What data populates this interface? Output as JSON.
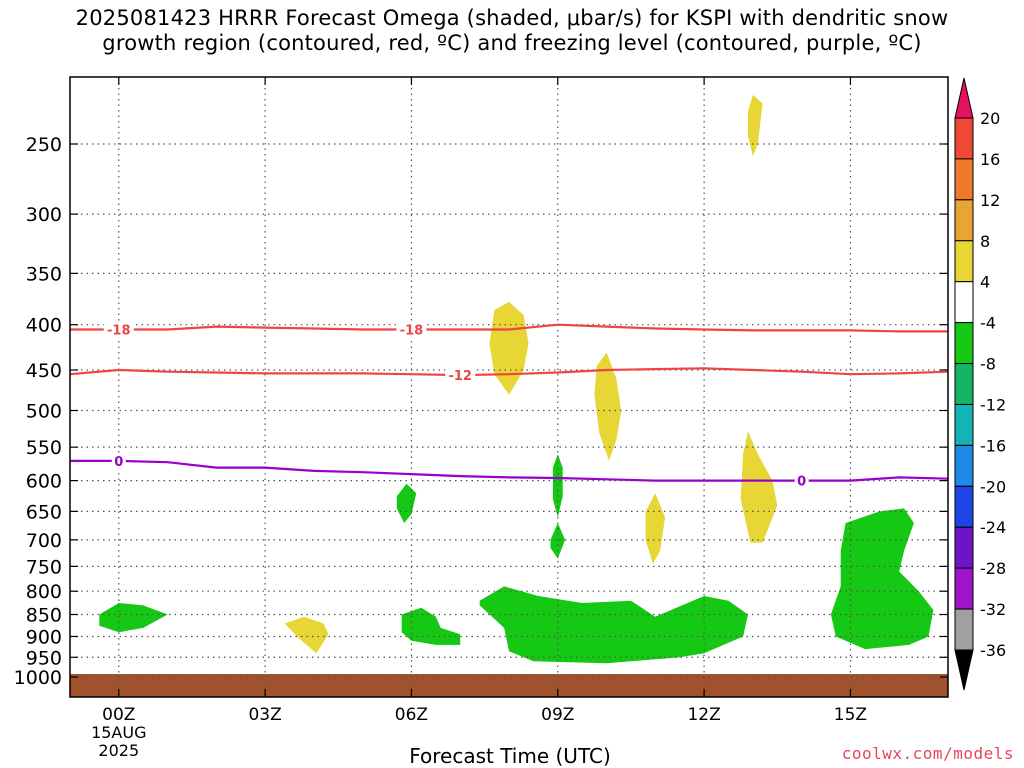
{
  "chart_data": {
    "type": "heatmap",
    "title": [
      "2025081423 HRRR Forecast Omega (shaded, μbar/s) for KSPI with dendritic snow",
      "growth region (contoured, red, ºC) and freezing level (contoured, purple, ºC)"
    ],
    "xlabel": "Forecast Time (UTC)",
    "ylabel": "",
    "x_range_hours": [
      -1,
      17
    ],
    "y_range_mb": [
      1025,
      200
    ],
    "y_ticks": [
      250,
      300,
      350,
      400,
      450,
      500,
      550,
      600,
      650,
      700,
      750,
      800,
      850,
      900,
      950,
      1000
    ],
    "x_ticks": [
      {
        "hour": 0,
        "label": "00Z",
        "sub": [
          "15AUG",
          "2025"
        ]
      },
      {
        "hour": 3,
        "label": "03Z"
      },
      {
        "hour": 6,
        "label": "06Z"
      },
      {
        "hour": 9,
        "label": "09Z"
      },
      {
        "hour": 12,
        "label": "12Z"
      },
      {
        "hour": 15,
        "label": "15Z"
      }
    ],
    "grid": true,
    "colorbar": {
      "labels": [
        "20",
        "16",
        "12",
        "8",
        "4",
        "-4",
        "-8",
        "-12",
        "-16",
        "-20",
        "-24",
        "-28",
        "-32",
        "-36"
      ],
      "colors": [
        "#e8115f",
        "#ef4937",
        "#f07a2c",
        "#e8a534",
        "#e8d634",
        "#ffffff",
        "#14c814",
        "#14b464",
        "#14b4b4",
        "#1e8ce6",
        "#1e46e6",
        "#6e14c8",
        "#a014c8",
        "#a0a0a0",
        "#000000"
      ]
    },
    "contours": [
      {
        "value": "-18",
        "color": "#ef4444",
        "points": [
          [
            -1,
            405
          ],
          [
            0,
            405
          ],
          [
            1,
            405
          ],
          [
            2,
            402
          ],
          [
            3,
            403
          ],
          [
            4,
            404
          ],
          [
            5,
            405
          ],
          [
            6,
            405
          ],
          [
            7,
            405
          ],
          [
            8,
            405
          ],
          [
            9,
            400
          ],
          [
            10,
            402
          ],
          [
            11,
            404
          ],
          [
            12,
            405
          ],
          [
            13,
            406
          ],
          [
            14,
            406
          ],
          [
            15,
            406
          ],
          [
            16,
            407
          ],
          [
            17,
            407
          ]
        ],
        "label_hours": [
          0,
          6
        ]
      },
      {
        "value": "-12",
        "color": "#ef4444",
        "points": [
          [
            -1,
            455
          ],
          [
            0,
            450
          ],
          [
            1,
            452
          ],
          [
            2,
            453
          ],
          [
            3,
            454
          ],
          [
            4,
            454
          ],
          [
            5,
            454
          ],
          [
            6,
            455
          ],
          [
            7,
            456
          ],
          [
            8,
            455
          ],
          [
            9,
            453
          ],
          [
            10,
            450
          ],
          [
            11,
            449
          ],
          [
            12,
            448
          ],
          [
            13,
            450
          ],
          [
            14,
            452
          ],
          [
            15,
            455
          ],
          [
            16,
            454
          ],
          [
            17,
            452
          ]
        ],
        "label_hours": [
          7
        ]
      },
      {
        "value": "0",
        "color": "#9900cc",
        "points": [
          [
            -1,
            570
          ],
          [
            0,
            570
          ],
          [
            1,
            572
          ],
          [
            2,
            580
          ],
          [
            3,
            580
          ],
          [
            4,
            585
          ],
          [
            5,
            587
          ],
          [
            6,
            590
          ],
          [
            7,
            593
          ],
          [
            8,
            595
          ],
          [
            9,
            596
          ],
          [
            10,
            598
          ],
          [
            11,
            600
          ],
          [
            12,
            600
          ],
          [
            13,
            600
          ],
          [
            14,
            600
          ],
          [
            15,
            600
          ],
          [
            16,
            595
          ],
          [
            17,
            597
          ]
        ],
        "label_hours": [
          0,
          14
        ]
      }
    ],
    "omega_regions": [
      {
        "level": "4",
        "color": "#e8d634",
        "points": [
          [
            12.9,
            230
          ],
          [
            13.0,
            220
          ],
          [
            13.2,
            225
          ],
          [
            13.1,
            250
          ],
          [
            13.0,
            258
          ],
          [
            12.9,
            245
          ]
        ]
      },
      {
        "level": "4",
        "color": "#e8d634",
        "points": [
          [
            7.7,
            385
          ],
          [
            8.0,
            377
          ],
          [
            8.3,
            390
          ],
          [
            8.4,
            420
          ],
          [
            8.3,
            450
          ],
          [
            8.0,
            480
          ],
          [
            7.7,
            455
          ],
          [
            7.6,
            420
          ]
        ]
      },
      {
        "level": "4",
        "color": "#e8d634",
        "points": [
          [
            9.8,
            445
          ],
          [
            10.0,
            430
          ],
          [
            10.2,
            460
          ],
          [
            10.3,
            500
          ],
          [
            10.2,
            540
          ],
          [
            10.05,
            570
          ],
          [
            9.85,
            530
          ],
          [
            9.75,
            480
          ]
        ]
      },
      {
        "level": "4",
        "color": "#e8d634",
        "points": [
          [
            12.8,
            560
          ],
          [
            12.9,
            528
          ],
          [
            13.1,
            560
          ],
          [
            13.4,
            600
          ],
          [
            13.5,
            640
          ],
          [
            13.2,
            705
          ],
          [
            12.95,
            705
          ],
          [
            12.75,
            630
          ]
        ]
      },
      {
        "level": "4",
        "color": "#e8d634",
        "points": [
          [
            10.8,
            650
          ],
          [
            11.0,
            620
          ],
          [
            11.2,
            660
          ],
          [
            11.1,
            720
          ],
          [
            10.95,
            745
          ],
          [
            10.8,
            700
          ]
        ]
      },
      {
        "level": "4",
        "color": "#e8d634",
        "points": [
          [
            3.4,
            870
          ],
          [
            3.8,
            855
          ],
          [
            4.2,
            870
          ],
          [
            4.3,
            895
          ],
          [
            4.05,
            940
          ],
          [
            3.7,
            905
          ]
        ]
      },
      {
        "level": "-4",
        "color": "#14c814",
        "points": [
          [
            -0.4,
            850
          ],
          [
            0,
            825
          ],
          [
            0.5,
            830
          ],
          [
            1.0,
            850
          ],
          [
            0.5,
            880
          ],
          [
            0,
            890
          ],
          [
            -0.4,
            875
          ]
        ]
      },
      {
        "level": "-4",
        "color": "#14c814",
        "points": [
          [
            5.7,
            625
          ],
          [
            5.9,
            605
          ],
          [
            6.1,
            620
          ],
          [
            6.0,
            655
          ],
          [
            5.85,
            670
          ],
          [
            5.7,
            645
          ]
        ]
      },
      {
        "level": "-4",
        "color": "#14c814",
        "points": [
          [
            8.9,
            580
          ],
          [
            9.0,
            560
          ],
          [
            9.1,
            580
          ],
          [
            9.1,
            625
          ],
          [
            9.0,
            660
          ],
          [
            8.9,
            630
          ]
        ]
      },
      {
        "level": "-4",
        "color": "#14c814",
        "points": [
          [
            8.85,
            700
          ],
          [
            9.0,
            670
          ],
          [
            9.15,
            700
          ],
          [
            9.0,
            735
          ],
          [
            8.85,
            715
          ]
        ]
      },
      {
        "level": "-4",
        "color": "#14c814",
        "points": [
          [
            5.8,
            850
          ],
          [
            6.2,
            835
          ],
          [
            6.5,
            855
          ],
          [
            6.6,
            880
          ],
          [
            7.0,
            895
          ],
          [
            7.0,
            920
          ],
          [
            6.5,
            920
          ],
          [
            6.0,
            910
          ],
          [
            5.8,
            890
          ]
        ]
      },
      {
        "level": "-4",
        "color": "#14c814",
        "points": [
          [
            7.4,
            820
          ],
          [
            7.9,
            790
          ],
          [
            8.6,
            810
          ],
          [
            9.5,
            825
          ],
          [
            10.5,
            820
          ],
          [
            11,
            855
          ],
          [
            12,
            810
          ],
          [
            12.5,
            820
          ],
          [
            12.9,
            850
          ],
          [
            12.8,
            900
          ],
          [
            12.0,
            940
          ],
          [
            11.5,
            950
          ],
          [
            10.0,
            965
          ],
          [
            8.5,
            960
          ],
          [
            8.0,
            935
          ],
          [
            7.9,
            880
          ],
          [
            7.4,
            830
          ]
        ]
      },
      {
        "level": "-4",
        "color": "#14c814",
        "points": [
          [
            14.9,
            670
          ],
          [
            15.6,
            650
          ],
          [
            16.1,
            645
          ],
          [
            16.3,
            670
          ],
          [
            16.1,
            720
          ],
          [
            16.0,
            760
          ],
          [
            16.4,
            800
          ],
          [
            16.7,
            840
          ],
          [
            16.6,
            900
          ],
          [
            16.2,
            920
          ],
          [
            15.3,
            930
          ],
          [
            14.7,
            900
          ],
          [
            14.6,
            850
          ],
          [
            14.8,
            790
          ],
          [
            14.8,
            720
          ]
        ]
      }
    ],
    "ground": {
      "color": "#a0522d",
      "from_mb": 1000
    }
  },
  "credit": "coolwx.com/models"
}
